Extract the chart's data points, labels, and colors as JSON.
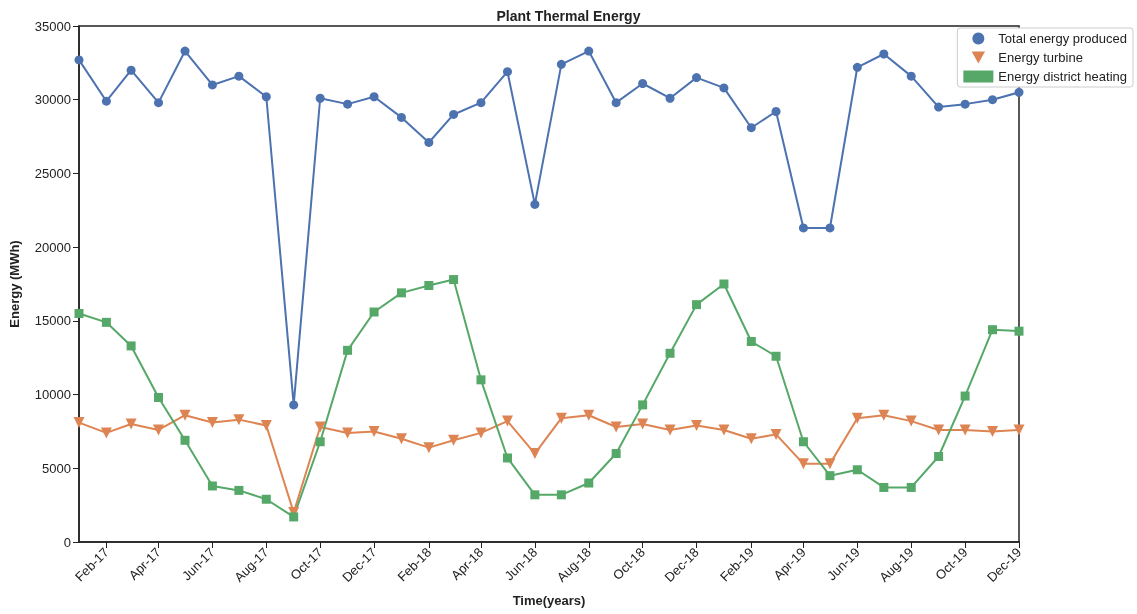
{
  "chart_data": {
    "type": "line",
    "title": "Plant Thermal Energy",
    "xlabel": "Time(years)",
    "ylabel": "Energy (MWh)",
    "x": [
      "2017-01",
      "2017-02",
      "2017-03",
      "2017-04",
      "2017-05",
      "2017-06",
      "2017-07",
      "2017-08",
      "2017-09",
      "2017-10",
      "2017-11",
      "2017-12",
      "2018-01",
      "2018-02",
      "2018-03",
      "2018-04",
      "2018-05",
      "2018-06",
      "2018-07",
      "2018-08",
      "2018-09",
      "2018-10",
      "2018-11",
      "2018-12",
      "2019-01",
      "2019-02",
      "2019-03",
      "2019-04",
      "2019-05",
      "2019-06",
      "2019-07",
      "2019-08",
      "2019-09",
      "2019-10",
      "2019-11",
      "2019-12"
    ],
    "series": [
      {
        "name": "Total energy produced",
        "color": "#4c72b0",
        "marker": "circle",
        "values": [
          32700,
          29900,
          32000,
          29800,
          33300,
          31000,
          31600,
          30200,
          9300,
          30100,
          29700,
          30200,
          28800,
          27100,
          29000,
          29800,
          31900,
          22900,
          32400,
          33300,
          29800,
          31100,
          30100,
          31500,
          30800,
          28100,
          29200,
          21300,
          21300,
          32200,
          33100,
          31600,
          29500,
          29700,
          30000,
          30500
        ]
      },
      {
        "name": "Energy turbine",
        "color": "#dd8452",
        "marker": "triangle",
        "values": [
          8100,
          7400,
          8000,
          7600,
          8600,
          8100,
          8300,
          7900,
          2000,
          7800,
          7400,
          7500,
          7000,
          6400,
          6900,
          7400,
          8200,
          6000,
          8400,
          8600,
          7800,
          8000,
          7600,
          7900,
          7600,
          7000,
          7300,
          5300,
          5300,
          8400,
          8600,
          8200,
          7600,
          7600,
          7500,
          7600
        ]
      },
      {
        "name": "Energy district heating",
        "color": "#55a868",
        "marker": "square",
        "values": [
          15500,
          14900,
          13300,
          9800,
          6900,
          3800,
          3500,
          2900,
          1700,
          6800,
          13000,
          15600,
          16900,
          17400,
          17800,
          11000,
          5700,
          3200,
          3200,
          4000,
          6000,
          9300,
          12800,
          16100,
          17500,
          13600,
          12600,
          6800,
          4500,
          4900,
          3700,
          3700,
          5800,
          9900,
          14400,
          14300
        ]
      }
    ],
    "xlim": [
      "2017-01",
      "2019-12"
    ],
    "xticks": [
      {
        "value": "2017-02",
        "label": "Feb-17"
      },
      {
        "value": "2017-04",
        "label": "Apr-17"
      },
      {
        "value": "2017-06",
        "label": "Jun-17"
      },
      {
        "value": "2017-08",
        "label": "Aug-17"
      },
      {
        "value": "2017-10",
        "label": "Oct-17"
      },
      {
        "value": "2017-12",
        "label": "Dec-17"
      },
      {
        "value": "2018-02",
        "label": "Feb-18"
      },
      {
        "value": "2018-04",
        "label": "Apr-18"
      },
      {
        "value": "2018-06",
        "label": "Jun-18"
      },
      {
        "value": "2018-08",
        "label": "Aug-18"
      },
      {
        "value": "2018-10",
        "label": "Oct-18"
      },
      {
        "value": "2018-12",
        "label": "Dec-18"
      },
      {
        "value": "2019-02",
        "label": "Feb-19"
      },
      {
        "value": "2019-04",
        "label": "Apr-19"
      },
      {
        "value": "2019-06",
        "label": "Jun-19"
      },
      {
        "value": "2019-08",
        "label": "Aug-19"
      },
      {
        "value": "2019-10",
        "label": "Oct-19"
      },
      {
        "value": "2019-12",
        "label": "Dec-19"
      }
    ],
    "ylim": [
      0,
      35000
    ],
    "yticks": [
      0,
      5000,
      10000,
      15000,
      20000,
      25000,
      30000,
      35000
    ],
    "grid": false,
    "legend": "top right",
    "line_style": "solid"
  }
}
